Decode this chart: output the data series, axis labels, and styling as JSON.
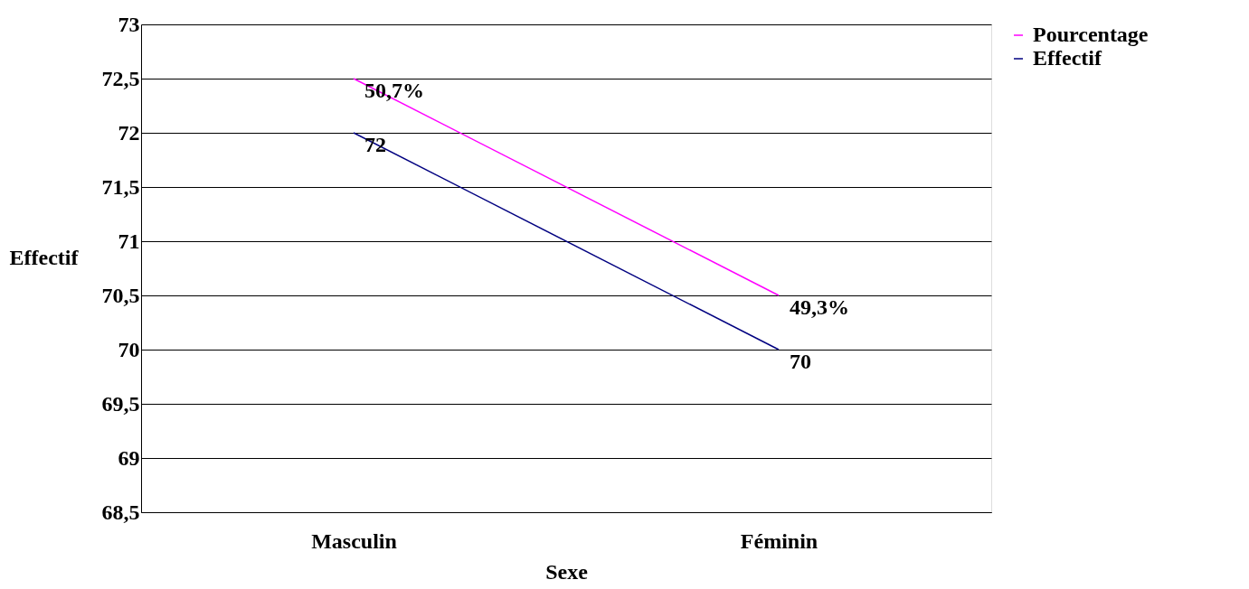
{
  "chart_data": {
    "type": "line",
    "xlabel": "Sexe",
    "ylabel": "Effectif",
    "categories": [
      "Masculin",
      "Féminin"
    ],
    "series": [
      {
        "name": "Effectif",
        "color": "#000080",
        "values": [
          72,
          70
        ],
        "value_labels": [
          "72",
          "70"
        ]
      },
      {
        "name": "Pourcentage",
        "color": "#ff00ff",
        "values": [
          72.5,
          70.5
        ]
      }
    ],
    "annotations": [
      {
        "text": "50,7%",
        "x": "Masculin",
        "y": 72.5
      },
      {
        "text": "49,3%",
        "x": "Féminin",
        "y": 70.5
      }
    ],
    "ylim": [
      68.5,
      73
    ],
    "yticks": [
      {
        "value": 68.5,
        "label": "68,5"
      },
      69,
      {
        "value": 69.5,
        "label": "69,5"
      },
      70,
      {
        "value": 70.5,
        "label": "70,5"
      },
      71,
      {
        "value": 71.5,
        "label": "71,5"
      },
      72,
      {
        "value": 72.5,
        "label": "72,5"
      },
      73
    ],
    "grid": "y",
    "legend": "right",
    "marker": "none",
    "line_style": "solid"
  }
}
